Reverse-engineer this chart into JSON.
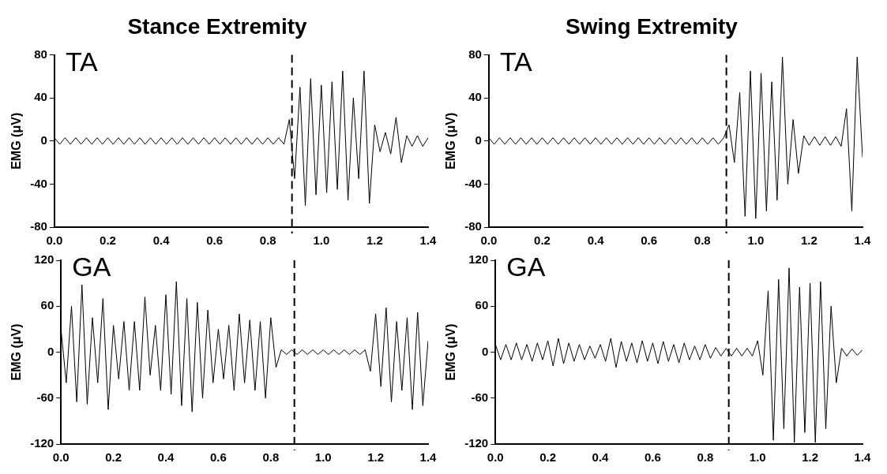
{
  "chart_data": [
    {
      "type": "line",
      "title": "Stance Extremity",
      "ylabel": "EMG (μV)",
      "annotations": [
        "TA"
      ],
      "grid": false,
      "legend": false,
      "marker": "none",
      "line_style": "solid",
      "x": [
        0,
        0.02,
        0.04,
        0.06,
        0.08,
        0.1,
        0.12,
        0.14,
        0.16,
        0.18,
        0.2,
        0.22,
        0.24,
        0.26,
        0.28,
        0.3,
        0.32,
        0.34,
        0.36,
        0.38,
        0.4,
        0.42,
        0.44,
        0.46,
        0.48,
        0.5,
        0.52,
        0.54,
        0.56,
        0.58,
        0.6,
        0.62,
        0.64,
        0.66,
        0.68,
        0.7,
        0.72,
        0.74,
        0.76,
        0.78,
        0.8,
        0.82,
        0.84,
        0.86,
        0.88,
        0.9,
        0.92,
        0.94,
        0.96,
        0.98,
        1,
        1.02,
        1.04,
        1.06,
        1.08,
        1.1,
        1.12,
        1.14,
        1.16,
        1.18,
        1.2,
        1.22,
        1.24,
        1.26,
        1.28,
        1.3,
        1.32,
        1.34,
        1.36,
        1.38,
        1.4
      ],
      "series": [
        {
          "color": "#000000",
          "values": [
            3,
            -3,
            3,
            -3,
            3,
            -3,
            3,
            -3,
            3,
            -3,
            3,
            -3,
            3,
            -3,
            3,
            -3,
            3,
            -3,
            3,
            -3,
            3,
            -3,
            3,
            -3,
            3,
            -3,
            3,
            -3,
            3,
            -3,
            3,
            -3,
            3,
            -3,
            3,
            -3,
            3,
            -3,
            3,
            -3,
            3,
            -3,
            3,
            -3,
            20,
            -35,
            50,
            -60,
            58,
            -50,
            52,
            -48,
            55,
            -45,
            65,
            -55,
            40,
            -35,
            65,
            -58,
            15,
            -10,
            8,
            -12,
            22,
            -20,
            5,
            -5,
            5,
            -5,
            3
          ]
        }
      ],
      "xlim": [
        0,
        1.4
      ],
      "xticks": [
        {
          "value": 0,
          "label": "0.0"
        },
        {
          "value": 0.2,
          "label": "0.2"
        },
        {
          "value": 0.4,
          "label": "0.4"
        },
        {
          "value": 0.6,
          "label": "0.6"
        },
        {
          "value": 0.8,
          "label": "0.8"
        },
        {
          "value": 1,
          "label": "1.0"
        },
        {
          "value": 1.2,
          "label": "1.2"
        },
        {
          "value": 1.4,
          "label": "1.4"
        }
      ],
      "ylim": [
        -80,
        80
      ],
      "yticks": [
        -80,
        -40,
        0,
        40,
        80
      ],
      "ref_lines": [
        {
          "axis": "x",
          "value": 0.89,
          "color": "#000000",
          "line_style": "dashed"
        }
      ]
    },
    {
      "type": "line",
      "title": "Swing Extremity",
      "ylabel": "EMG (μV)",
      "annotations": [
        "TA"
      ],
      "grid": false,
      "legend": false,
      "marker": "none",
      "line_style": "solid",
      "x": [
        0,
        0.02,
        0.04,
        0.06,
        0.08,
        0.1,
        0.12,
        0.14,
        0.16,
        0.18,
        0.2,
        0.22,
        0.24,
        0.26,
        0.28,
        0.3,
        0.32,
        0.34,
        0.36,
        0.38,
        0.4,
        0.42,
        0.44,
        0.46,
        0.48,
        0.5,
        0.52,
        0.54,
        0.56,
        0.58,
        0.6,
        0.62,
        0.64,
        0.66,
        0.68,
        0.7,
        0.72,
        0.74,
        0.76,
        0.78,
        0.8,
        0.82,
        0.84,
        0.86,
        0.88,
        0.9,
        0.92,
        0.94,
        0.96,
        0.98,
        1,
        1.02,
        1.04,
        1.06,
        1.08,
        1.1,
        1.12,
        1.14,
        1.16,
        1.18,
        1.2,
        1.22,
        1.24,
        1.26,
        1.28,
        1.3,
        1.32,
        1.34,
        1.36,
        1.38,
        1.4
      ],
      "series": [
        {
          "color": "#000000",
          "values": [
            3,
            -3,
            3,
            -3,
            3,
            -3,
            3,
            -3,
            3,
            -3,
            3,
            -3,
            3,
            -3,
            3,
            -3,
            3,
            -3,
            3,
            -3,
            3,
            -3,
            3,
            -3,
            3,
            -3,
            3,
            -3,
            3,
            -3,
            3,
            -3,
            3,
            -3,
            3,
            -3,
            3,
            -3,
            3,
            -3,
            3,
            -3,
            3,
            -3,
            3,
            15,
            -20,
            45,
            -70,
            65,
            -72,
            63,
            -65,
            55,
            -55,
            78,
            -40,
            20,
            -30,
            5,
            -4,
            4,
            -4,
            4,
            -4,
            4,
            -5,
            30,
            -65,
            78,
            -15
          ]
        }
      ],
      "xlim": [
        0,
        1.4
      ],
      "xticks": [
        {
          "value": 0,
          "label": "0.0"
        },
        {
          "value": 0.2,
          "label": "0.2"
        },
        {
          "value": 0.4,
          "label": "0.4"
        },
        {
          "value": 0.6,
          "label": "0.6"
        },
        {
          "value": 0.8,
          "label": "0.8"
        },
        {
          "value": 1,
          "label": "1.0"
        },
        {
          "value": 1.2,
          "label": "1.2"
        },
        {
          "value": 1.4,
          "label": "1.4"
        }
      ],
      "ylim": [
        -80,
        80
      ],
      "yticks": [
        -80,
        -40,
        0,
        40,
        80
      ],
      "ref_lines": [
        {
          "axis": "x",
          "value": 0.89,
          "color": "#000000",
          "line_style": "dashed"
        }
      ]
    },
    {
      "type": "line",
      "ylabel": "EMG (μV)",
      "annotations": [
        "GA"
      ],
      "grid": false,
      "legend": false,
      "marker": "none",
      "line_style": "solid",
      "x": [
        0,
        0.02,
        0.04,
        0.06,
        0.08,
        0.1,
        0.12,
        0.14,
        0.16,
        0.18,
        0.2,
        0.22,
        0.24,
        0.26,
        0.28,
        0.3,
        0.32,
        0.34,
        0.36,
        0.38,
        0.4,
        0.42,
        0.44,
        0.46,
        0.48,
        0.5,
        0.52,
        0.54,
        0.56,
        0.58,
        0.6,
        0.62,
        0.64,
        0.66,
        0.68,
        0.7,
        0.72,
        0.74,
        0.76,
        0.78,
        0.8,
        0.82,
        0.84,
        0.86,
        0.88,
        0.9,
        0.92,
        0.94,
        0.96,
        0.98,
        1,
        1.02,
        1.04,
        1.06,
        1.08,
        1.1,
        1.12,
        1.14,
        1.16,
        1.18,
        1.2,
        1.22,
        1.24,
        1.26,
        1.28,
        1.3,
        1.32,
        1.34,
        1.36,
        1.38,
        1.4
      ],
      "series": [
        {
          "color": "#000000",
          "values": [
            30,
            -40,
            60,
            -65,
            88,
            -68,
            45,
            -40,
            70,
            -75,
            35,
            -35,
            40,
            -50,
            40,
            -50,
            72,
            -30,
            35,
            -50,
            75,
            -55,
            92,
            -70,
            70,
            -78,
            65,
            -60,
            55,
            -40,
            30,
            -35,
            35,
            -50,
            50,
            -40,
            42,
            -50,
            40,
            -60,
            45,
            -20,
            3,
            -3,
            3,
            -3,
            3,
            -3,
            3,
            -3,
            3,
            -3,
            3,
            -3,
            3,
            -3,
            3,
            -3,
            3,
            -25,
            50,
            -45,
            58,
            -65,
            40,
            -50,
            45,
            -75,
            52,
            -70,
            15
          ]
        }
      ],
      "xlim": [
        0,
        1.4
      ],
      "xticks": [
        {
          "value": 0,
          "label": "0.0"
        },
        {
          "value": 0.2,
          "label": "0.2"
        },
        {
          "value": 0.4,
          "label": "0.4"
        },
        {
          "value": 0.6,
          "label": "0.6"
        },
        {
          "value": 0.8,
          "label": "0.8"
        },
        {
          "value": 1,
          "label": "1.0"
        },
        {
          "value": 1.2,
          "label": "1.2"
        },
        {
          "value": 1.4,
          "label": "1.4"
        }
      ],
      "ylim": [
        -120,
        120
      ],
      "yticks": [
        -120,
        -60,
        0,
        60,
        120
      ],
      "ref_lines": [
        {
          "axis": "x",
          "value": 0.89,
          "color": "#000000",
          "line_style": "dashed"
        }
      ]
    },
    {
      "type": "line",
      "ylabel": "EMG (μV)",
      "annotations": [
        "GA"
      ],
      "grid": false,
      "legend": false,
      "marker": "none",
      "line_style": "solid",
      "x": [
        0,
        0.02,
        0.04,
        0.06,
        0.08,
        0.1,
        0.12,
        0.14,
        0.16,
        0.18,
        0.2,
        0.22,
        0.24,
        0.26,
        0.28,
        0.3,
        0.32,
        0.34,
        0.36,
        0.38,
        0.4,
        0.42,
        0.44,
        0.46,
        0.48,
        0.5,
        0.52,
        0.54,
        0.56,
        0.58,
        0.6,
        0.62,
        0.64,
        0.66,
        0.68,
        0.7,
        0.72,
        0.74,
        0.76,
        0.78,
        0.8,
        0.82,
        0.84,
        0.86,
        0.88,
        0.9,
        0.92,
        0.94,
        0.96,
        0.98,
        1,
        1.02,
        1.04,
        1.06,
        1.08,
        1.1,
        1.12,
        1.14,
        1.16,
        1.18,
        1.2,
        1.22,
        1.24,
        1.26,
        1.28,
        1.3,
        1.32,
        1.34,
        1.36,
        1.38,
        1.4
      ],
      "series": [
        {
          "color": "#000000",
          "values": [
            10,
            -10,
            10,
            -10,
            12,
            -10,
            10,
            -12,
            12,
            -10,
            15,
            -18,
            18,
            -15,
            12,
            -12,
            10,
            -10,
            8,
            -8,
            10,
            -12,
            18,
            -20,
            14,
            -12,
            12,
            -14,
            15,
            -12,
            12,
            -15,
            14,
            -12,
            10,
            -14,
            12,
            -10,
            8,
            -10,
            10,
            -8,
            6,
            -5,
            5,
            -5,
            5,
            -5,
            5,
            -5,
            15,
            -30,
            80,
            -115,
            95,
            -100,
            110,
            -118,
            85,
            -105,
            90,
            -118,
            92,
            -100,
            60,
            -40,
            5,
            -5,
            4,
            -4,
            3
          ]
        }
      ],
      "xlim": [
        0,
        1.4
      ],
      "xticks": [
        {
          "value": 0,
          "label": "0.0"
        },
        {
          "value": 0.2,
          "label": "0.2"
        },
        {
          "value": 0.4,
          "label": "0.4"
        },
        {
          "value": 0.6,
          "label": "0.6"
        },
        {
          "value": 0.8,
          "label": "0.8"
        },
        {
          "value": 1,
          "label": "1.0"
        },
        {
          "value": 1.2,
          "label": "1.2"
        },
        {
          "value": 1.4,
          "label": "1.4"
        }
      ],
      "ylim": [
        -120,
        120
      ],
      "yticks": [
        -120,
        -60,
        0,
        60,
        120
      ],
      "ref_lines": [
        {
          "axis": "x",
          "value": 0.89,
          "color": "#000000",
          "line_style": "dashed"
        }
      ]
    }
  ]
}
